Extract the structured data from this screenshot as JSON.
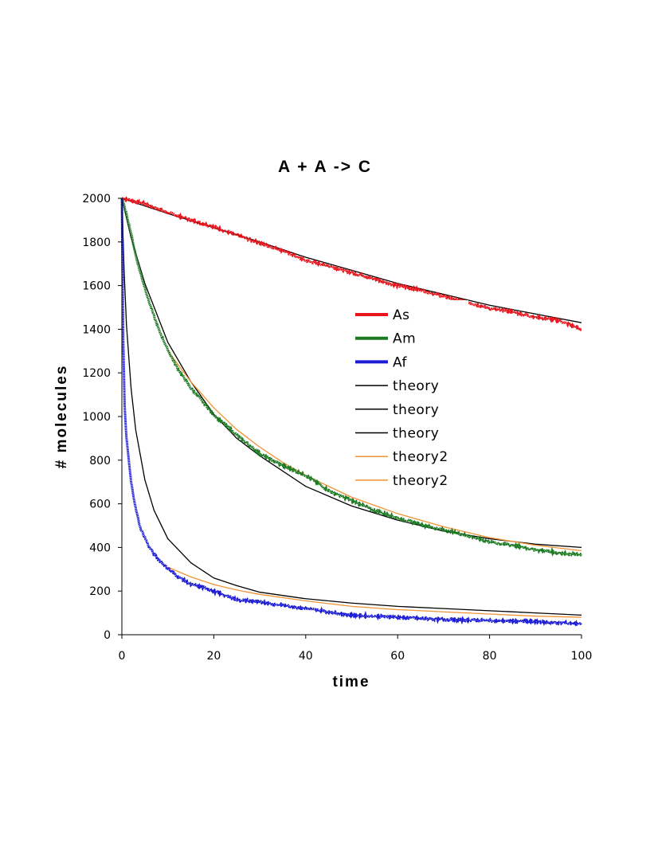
{
  "chart_data": {
    "type": "line",
    "title": "A + A -> C",
    "xlabel": "time",
    "ylabel": "# molecules",
    "xlim": [
      0,
      100
    ],
    "ylim": [
      0,
      2000
    ],
    "xticks": [
      0,
      20,
      40,
      60,
      80,
      100
    ],
    "yticks": [
      0,
      200,
      400,
      600,
      800,
      1000,
      1200,
      1400,
      1600,
      1800,
      2000
    ],
    "grid": false,
    "legend_position": "center-right",
    "series": [
      {
        "name": "As",
        "color": "#e8141c",
        "style": "noisy",
        "x": [
          0,
          5,
          10,
          15,
          20,
          25,
          30,
          35,
          40,
          45,
          50,
          55,
          60,
          65,
          70,
          75,
          80,
          85,
          90,
          95,
          100
        ],
        "y": [
          2000,
          1975,
          1935,
          1900,
          1870,
          1830,
          1795,
          1760,
          1715,
          1690,
          1660,
          1630,
          1600,
          1580,
          1550,
          1525,
          1495,
          1480,
          1455,
          1440,
          1400
        ]
      },
      {
        "name": "Am",
        "color": "#1c7a22",
        "style": "noisy",
        "x": [
          0,
          1,
          2,
          3,
          4,
          5,
          6,
          8,
          10,
          12,
          15,
          20,
          25,
          30,
          35,
          40,
          45,
          50,
          55,
          60,
          65,
          70,
          75,
          80,
          85,
          90,
          95,
          100
        ],
        "y": [
          2000,
          1930,
          1840,
          1740,
          1660,
          1590,
          1520,
          1400,
          1305,
          1225,
          1130,
          1010,
          915,
          830,
          775,
          730,
          660,
          615,
          570,
          535,
          505,
          480,
          455,
          425,
          410,
          390,
          375,
          365
        ]
      },
      {
        "name": "Af",
        "color": "#1a1ad6",
        "style": "noisy",
        "x": [
          0,
          0.3,
          0.6,
          1,
          1.5,
          2,
          3,
          4,
          5,
          6,
          7,
          8,
          10,
          12,
          15,
          18,
          20,
          25,
          30,
          40,
          50,
          60,
          70,
          80,
          90,
          100
        ],
        "y": [
          2000,
          1350,
          1050,
          900,
          800,
          700,
          580,
          490,
          445,
          400,
          370,
          345,
          305,
          270,
          230,
          215,
          200,
          160,
          150,
          120,
          90,
          80,
          70,
          65,
          60,
          50
        ]
      },
      {
        "name": "theory",
        "color": "#000000",
        "style": "smooth",
        "x": [
          0,
          10,
          20,
          30,
          40,
          50,
          60,
          70,
          80,
          90,
          100
        ],
        "y": [
          2000,
          1930,
          1865,
          1800,
          1730,
          1670,
          1610,
          1560,
          1510,
          1470,
          1430
        ]
      },
      {
        "name": "theory",
        "color": "#000000",
        "style": "smooth",
        "x": [
          0,
          2,
          5,
          10,
          15,
          20,
          25,
          30,
          40,
          50,
          60,
          70,
          80,
          90,
          100
        ],
        "y": [
          2000,
          1820,
          1610,
          1340,
          1160,
          1010,
          900,
          820,
          680,
          590,
          525,
          475,
          440,
          415,
          400
        ]
      },
      {
        "name": "theory",
        "color": "#000000",
        "style": "smooth",
        "x": [
          0,
          0.5,
          1,
          2,
          3,
          5,
          7,
          10,
          15,
          20,
          25,
          30,
          40,
          50,
          60,
          70,
          80,
          90,
          100
        ],
        "y": [
          2000,
          1660,
          1420,
          1130,
          940,
          710,
          570,
          440,
          330,
          260,
          225,
          195,
          165,
          145,
          130,
          120,
          110,
          100,
          90
        ]
      },
      {
        "name": "theory2",
        "color": "#f29233",
        "style": "smooth",
        "x": [
          10,
          15,
          20,
          25,
          30,
          35,
          40,
          50,
          60,
          70,
          80,
          90,
          100
        ],
        "y": [
          1300,
          1160,
          1040,
          940,
          860,
          790,
          730,
          630,
          555,
          495,
          445,
          410,
          385
        ]
      },
      {
        "name": "theory2",
        "color": "#f29233",
        "style": "smooth",
        "x": [
          10,
          15,
          20,
          25,
          30,
          40,
          50,
          60,
          70,
          80,
          90,
          100
        ],
        "y": [
          310,
          265,
          230,
          205,
          185,
          155,
          130,
          115,
          105,
          95,
          85,
          80
        ]
      }
    ]
  }
}
